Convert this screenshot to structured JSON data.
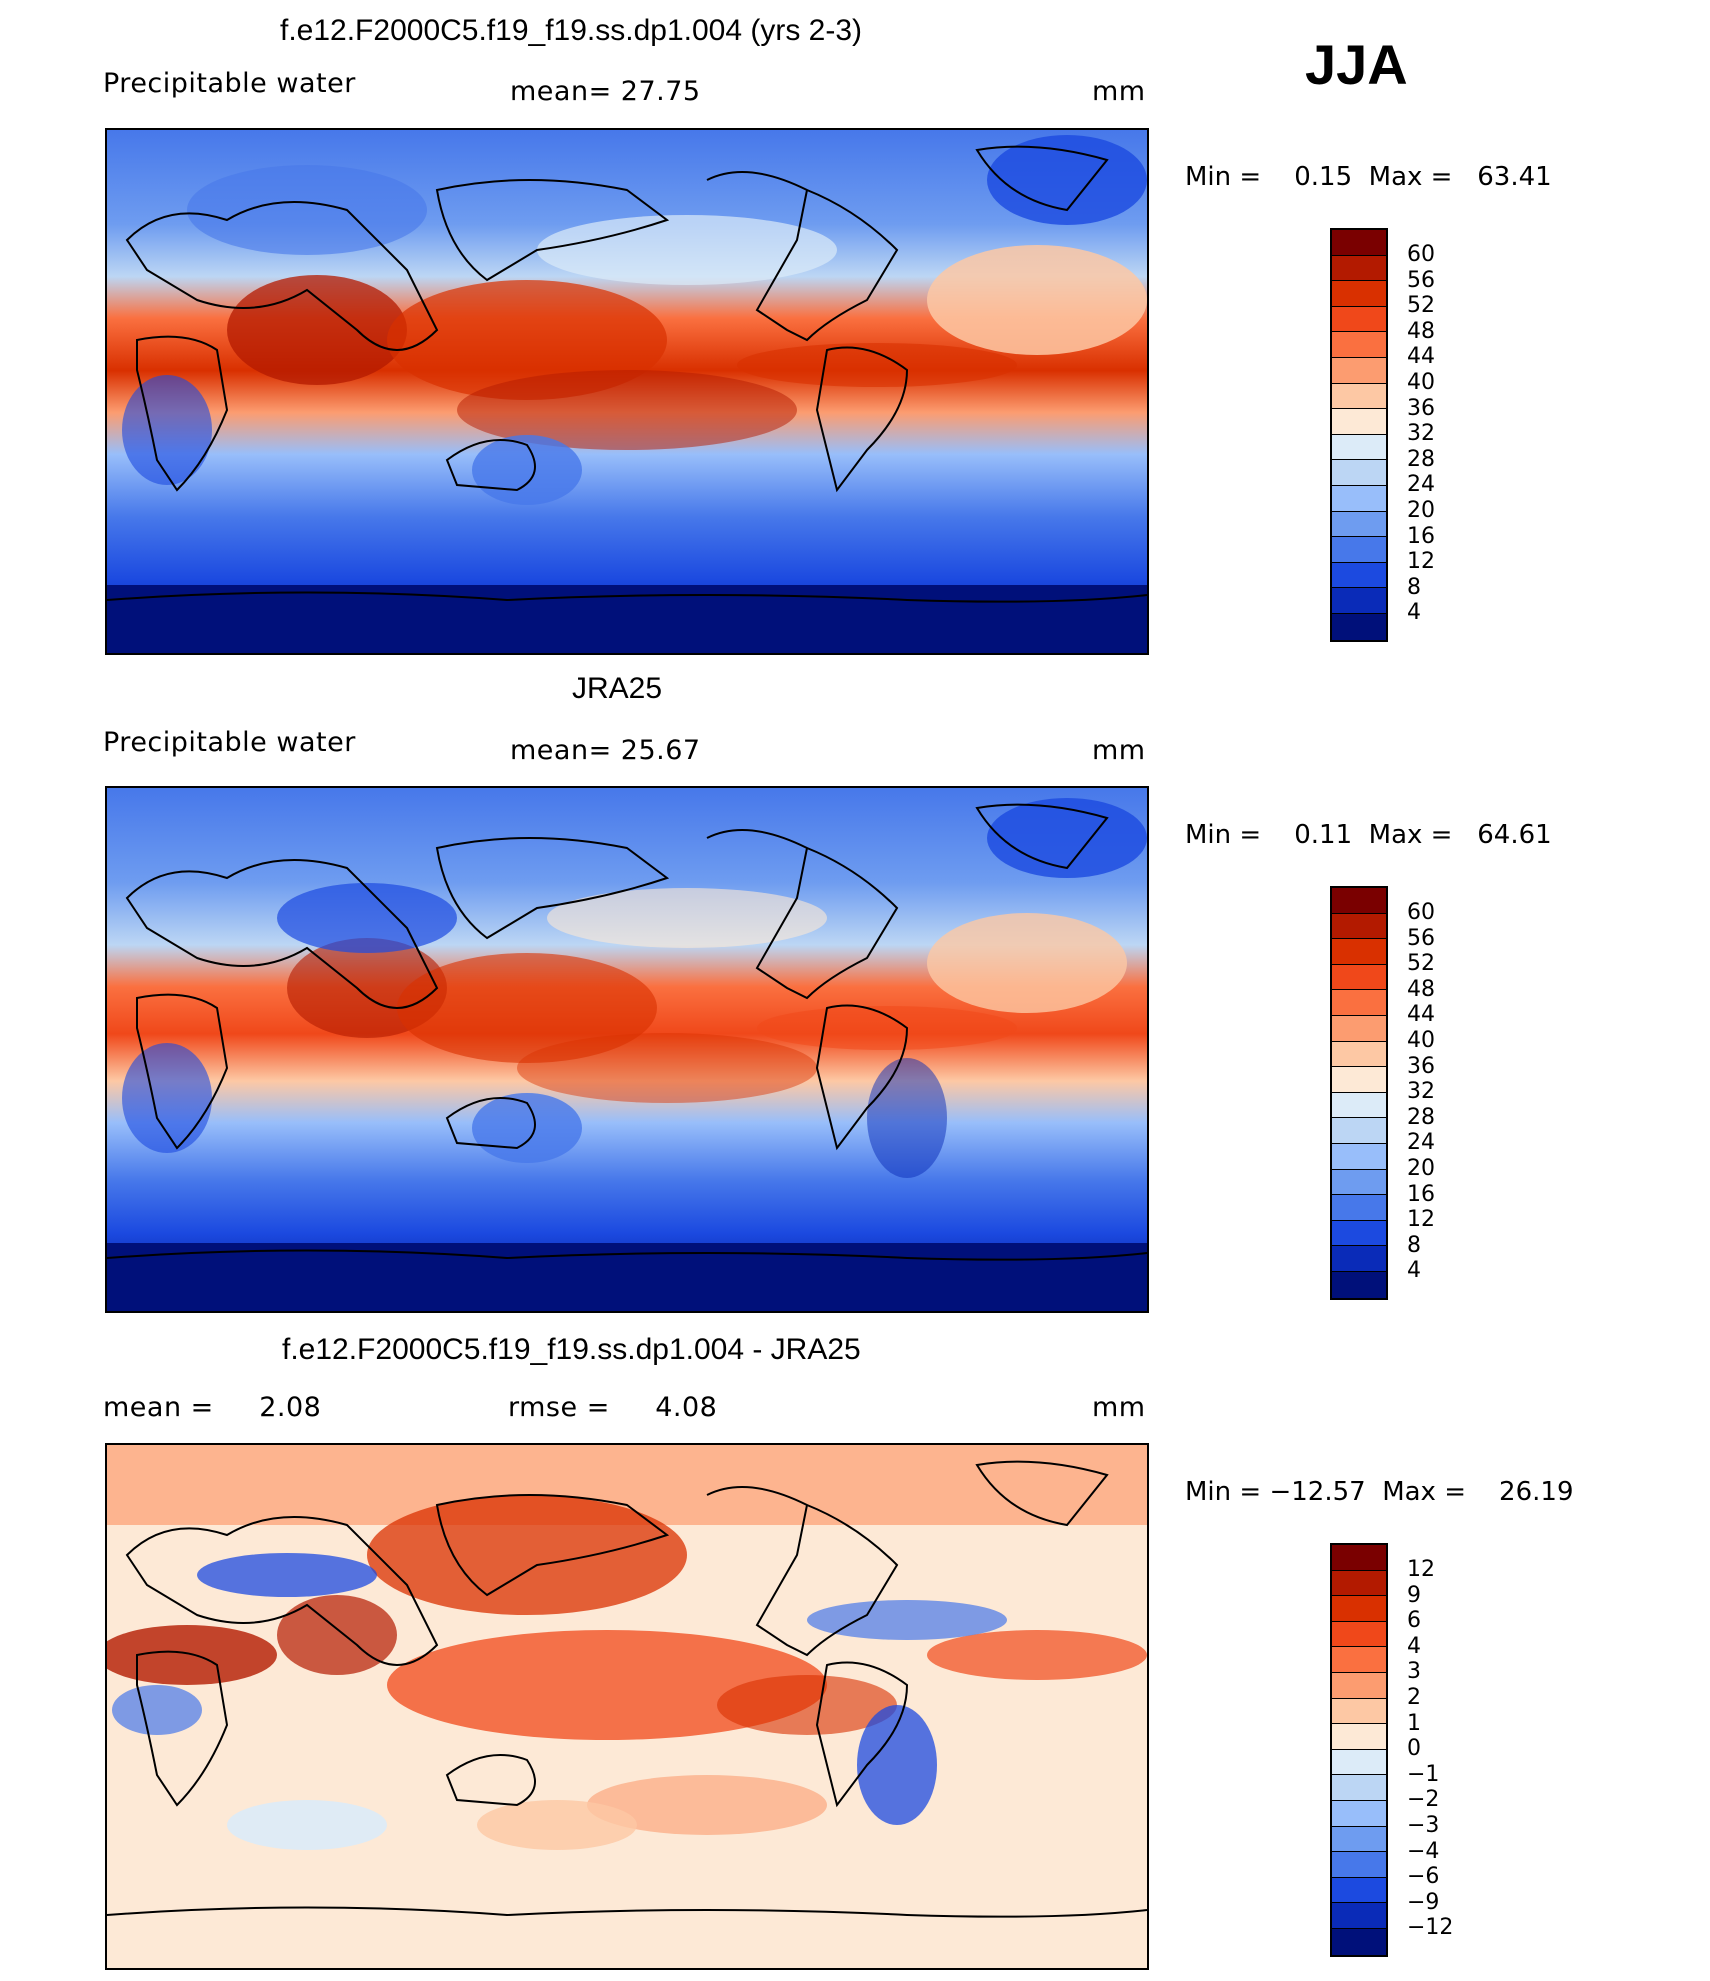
{
  "season": "JJA",
  "panels": [
    {
      "title": "f.e12.F2000C5.f19_f19.ss.dp1.004 (yrs 2-3)",
      "left_label": "Precipitable water",
      "mid_label": "mean=   27.75",
      "unit": "mm",
      "minmax": "Min =    0.15  Max =   63.41",
      "colorbar_levels": [
        "60",
        "56",
        "52",
        "48",
        "44",
        "40",
        "36",
        "32",
        "28",
        "24",
        "20",
        "16",
        "12",
        "8",
        "4"
      ],
      "colorbar_colors": [
        "#7a0000",
        "#b31a00",
        "#d93000",
        "#f0481a",
        "#fa7040",
        "#fc9c70",
        "#fdc8a4",
        "#fde9d6",
        "#dcebf8",
        "#bcd6f4",
        "#98befa",
        "#6e9cf0",
        "#4778ea",
        "#1c4ae0",
        "#0a2bb8",
        "#00107a"
      ]
    },
    {
      "title": "JRA25",
      "left_label": "Precipitable water",
      "mid_label": "mean=   25.67",
      "unit": "mm",
      "minmax": "Min =    0.11  Max =   64.61",
      "colorbar_levels": [
        "60",
        "56",
        "52",
        "48",
        "44",
        "40",
        "36",
        "32",
        "28",
        "24",
        "20",
        "16",
        "12",
        "8",
        "4"
      ],
      "colorbar_colors": [
        "#7a0000",
        "#b31a00",
        "#d93000",
        "#f0481a",
        "#fa7040",
        "#fc9c70",
        "#fdc8a4",
        "#fde9d6",
        "#dcebf8",
        "#bcd6f4",
        "#98befa",
        "#6e9cf0",
        "#4778ea",
        "#1c4ae0",
        "#0a2bb8",
        "#00107a"
      ]
    },
    {
      "title": "f.e12.F2000C5.f19_f19.ss.dp1.004 - JRA25",
      "left_label": "mean =     2.08",
      "mid_label": "rmse =     4.08",
      "unit": "mm",
      "minmax": "Min = −12.57  Max =    26.19",
      "colorbar_levels": [
        "12",
        "9",
        "6",
        "4",
        "3",
        "2",
        "1",
        "0",
        "−1",
        "−2",
        "−3",
        "−4",
        "−6",
        "−9",
        "−12"
      ],
      "colorbar_colors": [
        "#7a0000",
        "#b31a00",
        "#d93000",
        "#f0481a",
        "#fa7040",
        "#fc9c70",
        "#fdc8a4",
        "#fde9d6",
        "#dcebf8",
        "#bcd6f4",
        "#98befa",
        "#6e9cf0",
        "#4778ea",
        "#1c4ae0",
        "#0a2bb8",
        "#00107a"
      ]
    }
  ]
}
